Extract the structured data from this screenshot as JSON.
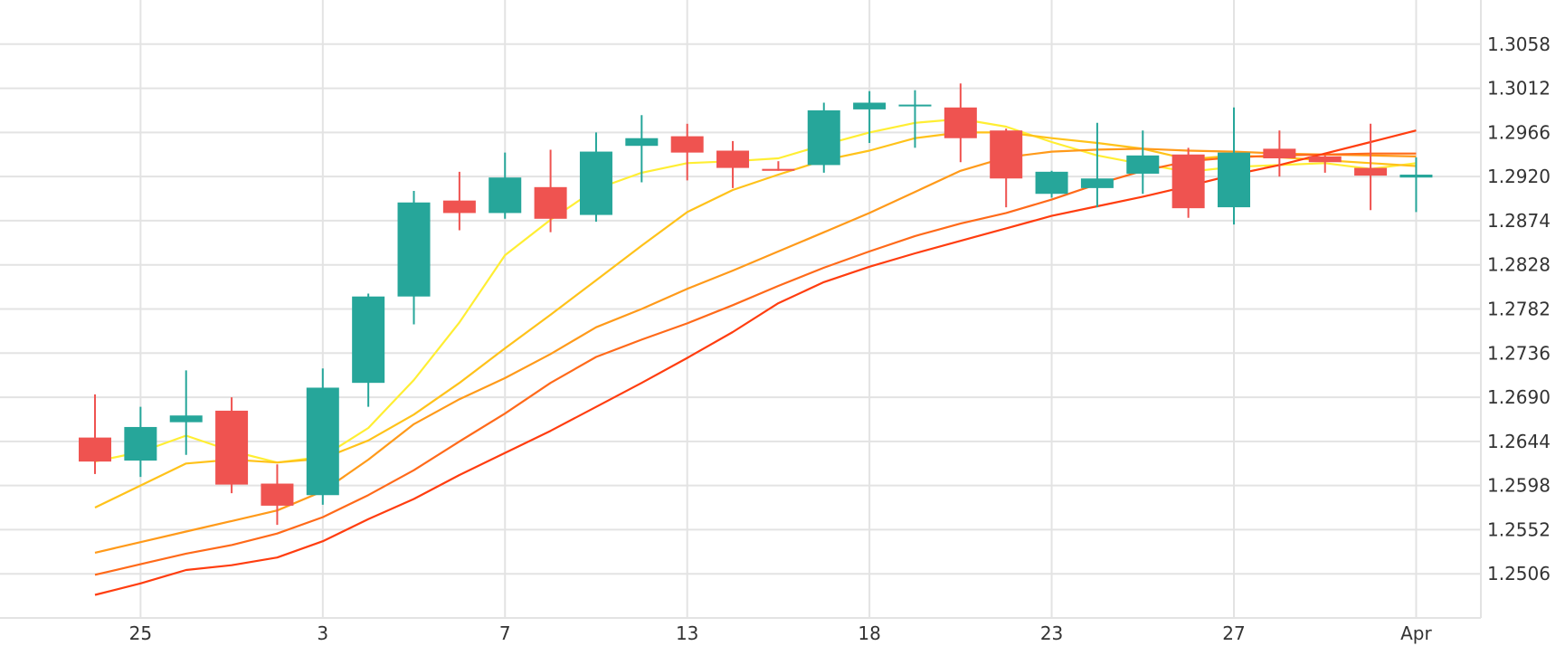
{
  "chart_data": {
    "type": "candlestick",
    "title": "",
    "xlabel": "",
    "ylabel": "",
    "ylim": [
      1.246,
      1.3104
    ],
    "grid": true,
    "y_ticks": [
      "1.3058",
      "1.3012",
      "1.2966",
      "1.2920",
      "1.2874",
      "1.2828",
      "1.2782",
      "1.2736",
      "1.2690",
      "1.2644",
      "1.2598",
      "1.2552",
      "1.2506"
    ],
    "x_ticks": [
      {
        "label": "25",
        "index": 1
      },
      {
        "label": "3",
        "index": 5
      },
      {
        "label": "7",
        "index": 9
      },
      {
        "label": "13",
        "index": 13
      },
      {
        "label": "18",
        "index": 17
      },
      {
        "label": "23",
        "index": 21
      },
      {
        "label": "27",
        "index": 25
      },
      {
        "label": "Apr",
        "index": 29
      }
    ],
    "colors": {
      "up": "#26a69a",
      "down": "#ef5350",
      "grid": "#e3e3e3"
    },
    "candles": [
      {
        "o": 1.2648,
        "h": 1.2693,
        "l": 1.261,
        "c": 1.2623
      },
      {
        "o": 1.2624,
        "h": 1.268,
        "l": 1.2607,
        "c": 1.2659
      },
      {
        "o": 1.2664,
        "h": 1.2718,
        "l": 1.263,
        "c": 1.2671
      },
      {
        "o": 1.2676,
        "h": 1.269,
        "l": 1.259,
        "c": 1.2599
      },
      {
        "o": 1.26,
        "h": 1.262,
        "l": 1.2557,
        "c": 1.2577
      },
      {
        "o": 1.2588,
        "h": 1.272,
        "l": 1.2578,
        "c": 1.27
      },
      {
        "o": 1.2705,
        "h": 1.2798,
        "l": 1.268,
        "c": 1.2795
      },
      {
        "o": 1.2795,
        "h": 1.2905,
        "l": 1.2766,
        "c": 1.2893
      },
      {
        "o": 1.2895,
        "h": 1.2925,
        "l": 1.2864,
        "c": 1.2882
      },
      {
        "o": 1.2882,
        "h": 1.2945,
        "l": 1.2876,
        "c": 1.2919
      },
      {
        "o": 1.2909,
        "h": 1.2948,
        "l": 1.2862,
        "c": 1.2876
      },
      {
        "o": 1.288,
        "h": 1.2966,
        "l": 1.2873,
        "c": 1.2946
      },
      {
        "o": 1.2952,
        "h": 1.2984,
        "l": 1.2914,
        "c": 1.296
      },
      {
        "o": 1.2962,
        "h": 1.2975,
        "l": 1.2916,
        "c": 1.2945
      },
      {
        "o": 1.2947,
        "h": 1.2957,
        "l": 1.2908,
        "c": 1.2929
      },
      {
        "o": 1.2928,
        "h": 1.2936,
        "l": 1.2926,
        "c": 1.2926
      },
      {
        "o": 1.2932,
        "h": 1.2997,
        "l": 1.2924,
        "c": 1.2989
      },
      {
        "o": 1.299,
        "h": 1.3009,
        "l": 1.2955,
        "c": 1.2997
      },
      {
        "o": 1.2995,
        "h": 1.301,
        "l": 1.295,
        "c": 1.2995
      },
      {
        "o": 1.2992,
        "h": 1.3017,
        "l": 1.2935,
        "c": 1.296
      },
      {
        "o": 1.2968,
        "h": 1.297,
        "l": 1.2888,
        "c": 1.2918
      },
      {
        "o": 1.2902,
        "h": 1.2926,
        "l": 1.2898,
        "c": 1.2925
      },
      {
        "o": 1.2908,
        "h": 1.2976,
        "l": 1.2888,
        "c": 1.2918
      },
      {
        "o": 1.2923,
        "h": 1.2968,
        "l": 1.2902,
        "c": 1.2942
      },
      {
        "o": 1.2943,
        "h": 1.295,
        "l": 1.2877,
        "c": 1.2887
      },
      {
        "o": 1.2888,
        "h": 1.2992,
        "l": 1.287,
        "c": 1.2945
      },
      {
        "o": 1.2949,
        "h": 1.2968,
        "l": 1.292,
        "c": 1.2939
      },
      {
        "o": 1.2941,
        "h": 1.2942,
        "l": 1.2924,
        "c": 1.2935
      },
      {
        "o": 1.2929,
        "h": 1.2975,
        "l": 1.2885,
        "c": 1.2921
      },
      {
        "o": 1.2919,
        "h": 1.294,
        "l": 1.2883,
        "c": 1.2922
      }
    ],
    "series": [
      {
        "color": "#ffee33",
        "x": [
          0,
          1,
          2,
          3,
          4,
          5,
          6,
          7,
          8,
          9,
          10,
          11,
          12,
          13,
          14,
          15,
          16,
          17,
          18,
          19,
          20,
          21,
          22,
          23,
          24,
          25,
          26,
          27,
          28,
          29
        ],
        "values": [
          1.2623,
          1.2633,
          1.265,
          1.2634,
          1.2622,
          1.2628,
          1.2658,
          1.2708,
          1.2768,
          1.2838,
          1.2875,
          1.2907,
          1.2924,
          1.2934,
          1.2936,
          1.2939,
          1.2953,
          1.2966,
          1.2976,
          1.298,
          1.2972,
          1.2956,
          1.2942,
          1.2933,
          1.2925,
          1.293,
          1.2932,
          1.2934,
          1.2928,
          1.2934
        ]
      },
      {
        "color": "#ffc21a",
        "x": [
          0,
          1,
          2,
          3,
          4,
          5,
          6,
          7,
          8,
          9,
          10,
          11,
          12,
          13,
          14,
          15,
          16,
          17,
          18,
          19,
          20,
          21,
          22,
          23,
          24,
          25,
          26,
          27,
          28,
          29
        ],
        "values": [
          1.2575,
          1.2598,
          1.2621,
          1.2625,
          1.2622,
          1.2626,
          1.2645,
          1.2672,
          1.2705,
          1.2741,
          1.2776,
          1.2812,
          1.2848,
          1.2883,
          1.2906,
          1.2922,
          1.2937,
          1.2947,
          1.296,
          1.2966,
          1.2966,
          1.296,
          1.2955,
          1.2949,
          1.2938,
          1.2942,
          1.294,
          1.2937,
          1.2934,
          1.2931
        ]
      },
      {
        "color": "#ff9a1a",
        "x": [
          0,
          1,
          2,
          3,
          4,
          5,
          6,
          7,
          8,
          9,
          10,
          11,
          12,
          13,
          14,
          15,
          16,
          17,
          18,
          19,
          20,
          21,
          22,
          23,
          24,
          25,
          26,
          27,
          28,
          29
        ],
        "values": [
          1.2528,
          1.2539,
          1.255,
          1.2561,
          1.2572,
          1.2592,
          1.2625,
          1.2662,
          1.2688,
          1.271,
          1.2735,
          1.2763,
          1.2782,
          1.2803,
          1.2822,
          1.2842,
          1.2862,
          1.2882,
          1.2904,
          1.2926,
          1.294,
          1.2946,
          1.2948,
          1.2949,
          1.2947,
          1.2946,
          1.2944,
          1.2943,
          1.2942,
          1.2941
        ]
      },
      {
        "color": "#ff6a1a",
        "x": [
          0,
          1,
          2,
          3,
          4,
          5,
          6,
          7,
          8,
          9,
          10,
          11,
          12,
          13,
          14,
          15,
          16,
          17,
          18,
          19,
          20,
          21,
          22,
          23,
          24,
          25,
          26,
          27,
          28,
          29
        ],
        "values": [
          1.2505,
          1.2516,
          1.2527,
          1.2536,
          1.2548,
          1.2565,
          1.2588,
          1.2614,
          1.2644,
          1.2673,
          1.2705,
          1.2732,
          1.275,
          1.2767,
          1.2786,
          1.2806,
          1.2825,
          1.2842,
          1.2858,
          1.2871,
          1.2882,
          1.2896,
          1.2912,
          1.2926,
          1.2936,
          1.294,
          1.2942,
          1.2943,
          1.2944,
          1.2944
        ]
      },
      {
        "color": "#ff3d0f",
        "x": [
          0,
          1,
          2,
          3,
          4,
          5,
          6,
          7,
          8,
          9,
          10,
          11,
          12,
          13,
          14,
          15,
          16,
          17,
          18,
          19,
          20,
          21,
          22,
          23,
          24,
          25,
          26,
          27,
          28,
          29
        ],
        "values": [
          1.2484,
          1.2496,
          1.251,
          1.2515,
          1.2523,
          1.254,
          1.2563,
          1.2584,
          1.2609,
          1.2632,
          1.2655,
          1.268,
          1.2705,
          1.2731,
          1.2758,
          1.2788,
          1.281,
          1.2826,
          1.284,
          1.2853,
          1.2866,
          1.2879,
          1.2889,
          1.2899,
          1.291,
          1.2922,
          1.2932,
          1.2944,
          1.2956,
          1.2968
        ]
      }
    ]
  }
}
